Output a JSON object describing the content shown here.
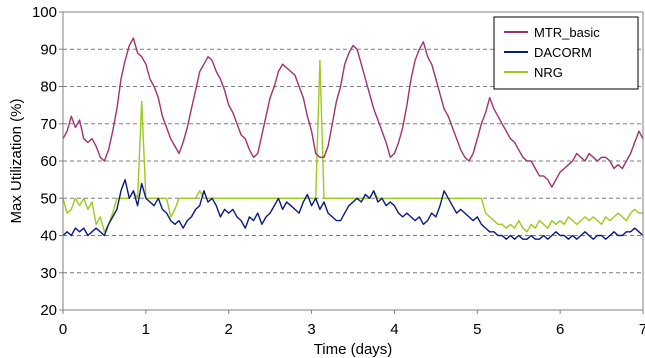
{
  "chart_data": {
    "type": "line",
    "title": "",
    "xlabel": "Time (days)",
    "ylabel": "Max Utilization (%)",
    "xlim": [
      0,
      7
    ],
    "ylim": [
      20,
      100
    ],
    "xticks": [
      0,
      1,
      2,
      3,
      4,
      5,
      6,
      7
    ],
    "yticks": [
      20,
      30,
      40,
      50,
      60,
      70,
      80,
      90,
      100
    ],
    "grid": "horizontal-dashed",
    "legend": "top-right",
    "series": [
      {
        "name": "MTR_basic",
        "color": "#A0336E",
        "x": [
          0,
          0.05,
          0.1,
          0.15,
          0.2,
          0.25,
          0.3,
          0.35,
          0.4,
          0.45,
          0.5,
          0.55,
          0.6,
          0.65,
          0.7,
          0.75,
          0.8,
          0.85,
          0.9,
          0.95,
          1.0,
          1.05,
          1.1,
          1.15,
          1.2,
          1.25,
          1.3,
          1.35,
          1.4,
          1.45,
          1.5,
          1.55,
          1.6,
          1.65,
          1.7,
          1.75,
          1.8,
          1.85,
          1.9,
          1.95,
          2.0,
          2.05,
          2.1,
          2.15,
          2.2,
          2.25,
          2.3,
          2.35,
          2.4,
          2.45,
          2.5,
          2.55,
          2.6,
          2.65,
          2.7,
          2.75,
          2.8,
          2.85,
          2.9,
          2.95,
          3.0,
          3.05,
          3.1,
          3.15,
          3.2,
          3.25,
          3.3,
          3.35,
          3.4,
          3.45,
          3.5,
          3.55,
          3.6,
          3.65,
          3.7,
          3.75,
          3.8,
          3.85,
          3.9,
          3.95,
          4.0,
          4.05,
          4.1,
          4.15,
          4.2,
          4.25,
          4.3,
          4.35,
          4.4,
          4.45,
          4.5,
          4.55,
          4.6,
          4.65,
          4.7,
          4.75,
          4.8,
          4.85,
          4.9,
          4.95,
          5.0,
          5.05,
          5.1,
          5.15,
          5.2,
          5.25,
          5.3,
          5.35,
          5.4,
          5.45,
          5.5,
          5.55,
          5.6,
          5.65,
          5.7,
          5.75,
          5.8,
          5.85,
          5.9,
          5.95,
          6.0,
          6.05,
          6.1,
          6.15,
          6.2,
          6.25,
          6.3,
          6.35,
          6.4,
          6.45,
          6.5,
          6.55,
          6.6,
          6.65,
          6.7,
          6.75,
          6.8,
          6.85,
          6.9,
          6.95,
          7.0
        ],
        "values": [
          66,
          68,
          72,
          69,
          71,
          66,
          65,
          66,
          64,
          61,
          60,
          63,
          68,
          74,
          82,
          87,
          91,
          93,
          89,
          88,
          86,
          82,
          80,
          77,
          72,
          69,
          66,
          64,
          62,
          65,
          69,
          74,
          79,
          84,
          86,
          88,
          87,
          84,
          82,
          79,
          75,
          73,
          70,
          67,
          66,
          63,
          61,
          62,
          67,
          72,
          77,
          80,
          84,
          86,
          85,
          84,
          83,
          80,
          77,
          72,
          68,
          62,
          61,
          61,
          64,
          70,
          76,
          80,
          86,
          89,
          91,
          90,
          86,
          82,
          78,
          74,
          71,
          68,
          65,
          61,
          62,
          65,
          69,
          75,
          82,
          87,
          90,
          92,
          88,
          86,
          82,
          78,
          74,
          72,
          69,
          66,
          63,
          61,
          60,
          62,
          66,
          70,
          73,
          77,
          74,
          72,
          70,
          68,
          66,
          65,
          63,
          61,
          60,
          60,
          58,
          56,
          56,
          55,
          53,
          55,
          57,
          58,
          59,
          60,
          62,
          61,
          60,
          62,
          61,
          60,
          61,
          61,
          60,
          58,
          59,
          58,
          60,
          62,
          65,
          68,
          66
        ]
      },
      {
        "name": "DACORM",
        "color": "#0A1A80",
        "x": [
          0,
          0.05,
          0.1,
          0.15,
          0.2,
          0.25,
          0.3,
          0.35,
          0.4,
          0.45,
          0.5,
          0.55,
          0.6,
          0.65,
          0.7,
          0.75,
          0.8,
          0.85,
          0.9,
          0.95,
          1.0,
          1.05,
          1.1,
          1.15,
          1.2,
          1.25,
          1.3,
          1.35,
          1.4,
          1.45,
          1.5,
          1.55,
          1.6,
          1.65,
          1.7,
          1.75,
          1.8,
          1.85,
          1.9,
          1.95,
          2.0,
          2.05,
          2.1,
          2.15,
          2.2,
          2.25,
          2.3,
          2.35,
          2.4,
          2.45,
          2.5,
          2.55,
          2.6,
          2.65,
          2.7,
          2.75,
          2.8,
          2.85,
          2.9,
          2.95,
          3.0,
          3.05,
          3.1,
          3.15,
          3.2,
          3.25,
          3.3,
          3.35,
          3.4,
          3.45,
          3.5,
          3.55,
          3.6,
          3.65,
          3.7,
          3.75,
          3.8,
          3.85,
          3.9,
          3.95,
          4.0,
          4.05,
          4.1,
          4.15,
          4.2,
          4.25,
          4.3,
          4.35,
          4.4,
          4.45,
          4.5,
          4.55,
          4.6,
          4.65,
          4.7,
          4.75,
          4.8,
          4.85,
          4.9,
          4.95,
          5.0,
          5.05,
          5.1,
          5.15,
          5.2,
          5.25,
          5.3,
          5.35,
          5.4,
          5.45,
          5.5,
          5.55,
          5.6,
          5.65,
          5.7,
          5.75,
          5.8,
          5.85,
          5.9,
          5.95,
          6.0,
          6.05,
          6.1,
          6.15,
          6.2,
          6.25,
          6.3,
          6.35,
          6.4,
          6.45,
          6.5,
          6.55,
          6.6,
          6.65,
          6.7,
          6.75,
          6.8,
          6.85,
          6.9,
          6.95,
          7.0
        ],
        "values": [
          40,
          41,
          40,
          42,
          41,
          42,
          40,
          41,
          42,
          41,
          40,
          43,
          45,
          47,
          52,
          55,
          50,
          52,
          48,
          54,
          50,
          49,
          48,
          50,
          47,
          46,
          44,
          43,
          44,
          42,
          44,
          45,
          47,
          48,
          52,
          49,
          50,
          48,
          45,
          47,
          46,
          47,
          45,
          44,
          42,
          45,
          44,
          46,
          43,
          45,
          46,
          48,
          50,
          47,
          49,
          48,
          47,
          46,
          49,
          51,
          48,
          50,
          47,
          49,
          46,
          45,
          44,
          44,
          46,
          48,
          49,
          50,
          49,
          51,
          50,
          52,
          49,
          50,
          48,
          49,
          48,
          46,
          45,
          46,
          45,
          44,
          45,
          43,
          44,
          46,
          45,
          48,
          52,
          50,
          48,
          46,
          47,
          46,
          45,
          44,
          45,
          43,
          42,
          41,
          41,
          40,
          40,
          39,
          40,
          39,
          40,
          39,
          39,
          40,
          39,
          39,
          40,
          39,
          40,
          41,
          40,
          40,
          39,
          40,
          39,
          40,
          41,
          40,
          39,
          40,
          40,
          39,
          40,
          41,
          40,
          40,
          41,
          41,
          42,
          41,
          40
        ]
      },
      {
        "name": "NRG",
        "color": "#9BCB1E",
        "x": [
          0,
          0.05,
          0.1,
          0.15,
          0.2,
          0.25,
          0.3,
          0.35,
          0.4,
          0.45,
          0.5,
          0.55,
          0.6,
          0.65,
          0.7,
          0.75,
          0.8,
          0.85,
          0.9,
          0.95,
          1.0,
          1.05,
          1.1,
          1.15,
          1.2,
          1.25,
          1.3,
          1.35,
          1.4,
          1.45,
          1.5,
          1.55,
          1.6,
          1.65,
          1.7,
          1.75,
          1.8,
          1.85,
          1.9,
          1.95,
          2.0,
          2.05,
          2.1,
          2.15,
          2.2,
          2.25,
          2.3,
          2.35,
          2.4,
          2.45,
          2.5,
          2.55,
          2.6,
          2.65,
          2.7,
          2.75,
          2.8,
          2.85,
          2.9,
          2.95,
          3.0,
          3.05,
          3.1,
          3.15,
          3.2,
          3.25,
          3.3,
          3.35,
          3.4,
          3.45,
          3.5,
          3.55,
          3.6,
          3.65,
          3.7,
          3.75,
          3.8,
          3.85,
          3.9,
          3.95,
          4.0,
          4.05,
          4.1,
          4.15,
          4.2,
          4.25,
          4.3,
          4.35,
          4.4,
          4.45,
          4.5,
          4.55,
          4.6,
          4.65,
          4.7,
          4.75,
          4.8,
          4.85,
          4.9,
          4.95,
          5.0,
          5.05,
          5.1,
          5.15,
          5.2,
          5.25,
          5.3,
          5.35,
          5.4,
          5.45,
          5.5,
          5.55,
          5.6,
          5.65,
          5.7,
          5.75,
          5.8,
          5.85,
          5.9,
          5.95,
          6.0,
          6.05,
          6.1,
          6.15,
          6.2,
          6.25,
          6.3,
          6.35,
          6.4,
          6.45,
          6.5,
          6.55,
          6.6,
          6.65,
          6.7,
          6.75,
          6.8,
          6.85,
          6.9,
          6.95,
          7.0
        ],
        "values": [
          50,
          46,
          47,
          50,
          48,
          50,
          47,
          49,
          43,
          45,
          41,
          43,
          46,
          50,
          50,
          50,
          50,
          52,
          50,
          76,
          50,
          50,
          50,
          50,
          50,
          50,
          45,
          47,
          50,
          50,
          50,
          50,
          50,
          52,
          50,
          50,
          50,
          50,
          50,
          50,
          50,
          50,
          50,
          50,
          50,
          50,
          50,
          50,
          50,
          50,
          50,
          50,
          50,
          50,
          50,
          50,
          50,
          50,
          50,
          50,
          50,
          50,
          87,
          50,
          50,
          50,
          50,
          50,
          50,
          50,
          50,
          50,
          50,
          50,
          50,
          52,
          50,
          50,
          50,
          50,
          50,
          50,
          50,
          50,
          50,
          50,
          50,
          50,
          50,
          50,
          50,
          50,
          50,
          50,
          50,
          50,
          50,
          50,
          50,
          50,
          50,
          50,
          46,
          45,
          44,
          43,
          43,
          42,
          43,
          42,
          44,
          42,
          41,
          43,
          42,
          44,
          43,
          42,
          44,
          43,
          44,
          43,
          45,
          44,
          43,
          44,
          45,
          44,
          45,
          44,
          43,
          45,
          44,
          45,
          46,
          45,
          44,
          46,
          47,
          46,
          46
        ]
      }
    ]
  }
}
